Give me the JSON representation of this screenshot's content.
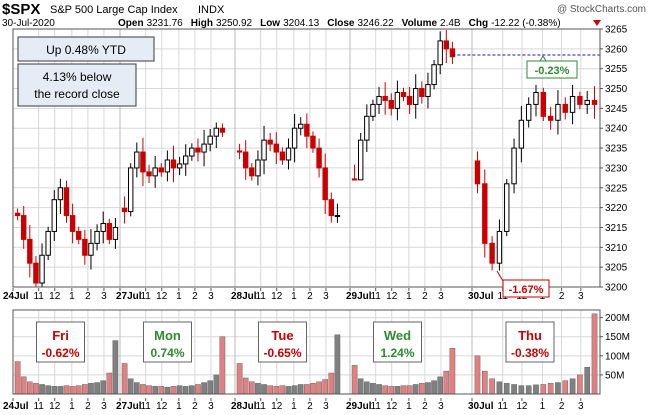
{
  "header": {
    "ticker": "$SPX",
    "name": "S&P 500 Large Cap Index",
    "exchange": "INDX",
    "watermark": "@ StockCharts.com",
    "date": "30-Jul-2020",
    "quote": [
      {
        "label": "Open",
        "value": "3231.76"
      },
      {
        "label": "High",
        "value": "3250.92"
      },
      {
        "label": "Low",
        "value": "3204.13"
      },
      {
        "label": "Close",
        "value": "3246.22"
      },
      {
        "label": "Volume",
        "value": "2.4B"
      },
      {
        "label": "Chg",
        "value": "-12.22 (-0.38%)"
      }
    ]
  },
  "callouts": {
    "ytd": "Up 0.48% YTD",
    "record_line1": "4.13% below",
    "record_line2": "the record close",
    "high_pct": "-0.23%",
    "low_pct": "-1.67%"
  },
  "day_labels": [
    {
      "day": "Fri",
      "pct": "-0.62%",
      "color": "#cc0000"
    },
    {
      "day": "Mon",
      "pct": "0.74%",
      "color": "#2e8b2e"
    },
    {
      "day": "Tue",
      "pct": "-0.65%",
      "color": "#cc0000"
    },
    {
      "day": "Wed",
      "pct": "1.24%",
      "color": "#2e8b2e"
    },
    {
      "day": "Thu",
      "pct": "-0.38%",
      "color": "#cc0000"
    }
  ],
  "x_axis": {
    "day_ticks": [
      "24Jul",
      "27Jul",
      "28Jul",
      "29Jul",
      "30Jul"
    ],
    "hour_ticks": [
      "11",
      "12",
      "1",
      "2",
      "3"
    ]
  },
  "colors": {
    "up": "#000000",
    "down": "#cc0000",
    "vol_up": "#808080",
    "vol_down": "#e08080",
    "grid": "#d8d8d8",
    "reference_line": "#1a1aa0"
  },
  "chart_data": [
    {
      "type": "candlestick",
      "title": "$SPX S&P 500 Large Cap Index INDX",
      "interval": "intraday bars",
      "ylim": [
        3200,
        3265
      ],
      "y_ticks": [
        3200,
        3205,
        3210,
        3215,
        3220,
        3225,
        3230,
        3235,
        3240,
        3245,
        3250,
        3255,
        3260,
        3265
      ],
      "reference_level": 3258.44,
      "sessions": [
        {
          "date": "24Jul",
          "open": 3218.58,
          "high": 3227.26,
          "low": 3200.05,
          "close": 3215.63,
          "path": [
            3218,
            3212,
            3206,
            3201,
            3208,
            3214,
            3222,
            3225,
            3218,
            3214,
            3212,
            3208,
            3211,
            3214,
            3216,
            3212,
            3215
          ]
        },
        {
          "date": "27Jul",
          "open": 3219.84,
          "high": 3241.43,
          "low": 3214.25,
          "close": 3239.41,
          "path": [
            3219,
            3230,
            3234,
            3229,
            3228,
            3230,
            3229,
            3232,
            3230,
            3231,
            3233,
            3235,
            3234,
            3236,
            3238,
            3240,
            3239
          ]
        },
        {
          "date": "28Jul",
          "open": 3234.27,
          "high": 3243.72,
          "low": 3216.17,
          "close": 3218.44,
          "path": [
            3234,
            3230,
            3228,
            3232,
            3237,
            3236,
            3234,
            3232,
            3235,
            3240,
            3241,
            3238,
            3235,
            3230,
            3222,
            3218,
            3218
          ]
        },
        {
          "date": "29Jul",
          "open": 3227.22,
          "high": 3264.74,
          "low": 3227.22,
          "close": 3258.44,
          "path": [
            3227,
            3237,
            3243,
            3246,
            3248,
            3247,
            3245,
            3249,
            3248,
            3246,
            3250,
            3248,
            3251,
            3256,
            3262,
            3260,
            3258
          ]
        },
        {
          "date": "30Jul",
          "open": 3231.76,
          "high": 3250.92,
          "low": 3204.13,
          "close": 3246.22,
          "path": [
            3226,
            3211,
            3206,
            3214,
            3226,
            3235,
            3242,
            3246,
            3249,
            3243,
            3242,
            3246,
            3244,
            3248,
            3246,
            3247,
            3246
          ]
        }
      ]
    },
    {
      "type": "bar",
      "title": "Volume",
      "ylim": [
        0,
        220
      ],
      "y_ticks": [
        50,
        100,
        150,
        200
      ],
      "y_tick_labels": [
        "50M",
        "100M",
        "150M",
        "200M"
      ],
      "sessions": [
        {
          "date": "24Jul",
          "values": [
            85,
            45,
            32,
            28,
            25,
            22,
            20,
            20,
            22,
            20,
            22,
            25,
            28,
            30,
            35,
            55,
            140
          ]
        },
        {
          "date": "27Jul",
          "values": [
            80,
            40,
            30,
            25,
            22,
            20,
            20,
            18,
            20,
            22,
            20,
            22,
            25,
            30,
            35,
            50,
            150
          ]
        },
        {
          "date": "28Jul",
          "values": [
            80,
            42,
            32,
            28,
            25,
            22,
            20,
            22,
            20,
            22,
            25,
            25,
            28,
            32,
            38,
            55,
            155
          ]
        },
        {
          "date": "29Jul",
          "values": [
            75,
            40,
            32,
            28,
            25,
            22,
            20,
            20,
            22,
            22,
            25,
            28,
            30,
            35,
            45,
            60,
            120
          ]
        },
        {
          "date": "30Jul",
          "values": [
            100,
            60,
            40,
            32,
            28,
            25,
            22,
            22,
            24,
            25,
            28,
            30,
            35,
            40,
            50,
            70,
            210
          ]
        }
      ]
    }
  ]
}
